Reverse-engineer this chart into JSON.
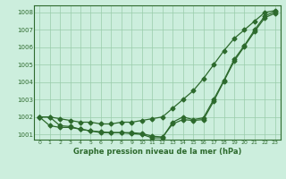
{
  "title": "Graphe pression niveau de la mer (hPa)",
  "x_labels": [
    "0",
    "1",
    "2",
    "3",
    "4",
    "5",
    "6",
    "7",
    "8",
    "9",
    "10",
    "11",
    "12",
    "13",
    "14",
    "15",
    "16",
    "17",
    "18",
    "19",
    "20",
    "21",
    "22",
    "23"
  ],
  "hours": [
    0,
    1,
    2,
    3,
    4,
    5,
    6,
    7,
    8,
    9,
    10,
    11,
    12,
    13,
    14,
    15,
    16,
    17,
    18,
    19,
    20,
    21,
    22,
    23
  ],
  "line1": [
    1002.0,
    1002.0,
    1001.9,
    1001.8,
    1001.7,
    1001.7,
    1001.6,
    1001.6,
    1001.7,
    1001.7,
    1001.8,
    1001.9,
    1002.0,
    1002.5,
    1003.0,
    1003.5,
    1004.2,
    1005.0,
    1005.8,
    1006.5,
    1007.0,
    1007.5,
    1008.0,
    1008.1
  ],
  "line2": [
    1002.0,
    1001.5,
    1001.4,
    1001.4,
    1001.3,
    1001.2,
    1001.1,
    1001.1,
    1001.1,
    1001.1,
    1001.05,
    1000.9,
    1000.85,
    1001.6,
    1001.85,
    1001.8,
    1001.85,
    1002.9,
    1004.05,
    1005.2,
    1006.05,
    1006.9,
    1007.7,
    1007.95
  ],
  "line3": [
    1002.0,
    1002.0,
    1001.5,
    1001.45,
    1001.3,
    1001.2,
    1001.15,
    1001.1,
    1001.1,
    1001.05,
    1001.0,
    1000.8,
    1000.8,
    1001.7,
    1002.0,
    1001.85,
    1001.95,
    1003.0,
    1004.1,
    1005.3,
    1006.1,
    1007.0,
    1007.8,
    1008.05
  ],
  "ylim": [
    1000.7,
    1008.4
  ],
  "yticks": [
    1001,
    1002,
    1003,
    1004,
    1005,
    1006,
    1007,
    1008
  ],
  "line_color": "#2d6a2d",
  "bg_color": "#cceedd",
  "grid_color": "#99ccaa",
  "marker": "D",
  "marker_size": 2.5,
  "linewidth": 0.9
}
